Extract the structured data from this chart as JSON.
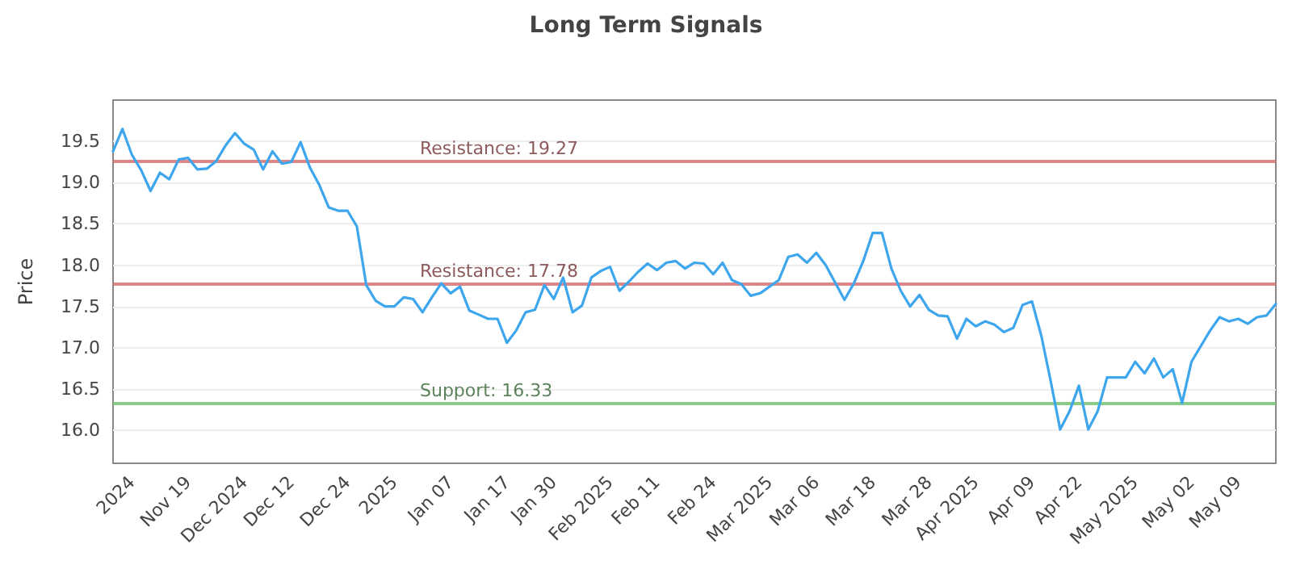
{
  "chart_data": {
    "type": "line",
    "title": "Long Term Signals",
    "ylabel": "Price",
    "categories": [
      null,
      null,
      "2024",
      null,
      null,
      null,
      null,
      null,
      "Nov 19",
      null,
      null,
      null,
      null,
      null,
      "Dec 2024",
      null,
      null,
      null,
      null,
      "Dec 12",
      null,
      null,
      null,
      null,
      null,
      "Dec 24",
      null,
      null,
      null,
      null,
      "2025",
      null,
      null,
      null,
      null,
      null,
      "Jan 07",
      null,
      null,
      null,
      null,
      null,
      "Jan 17",
      null,
      null,
      null,
      null,
      "Jan 30",
      null,
      null,
      null,
      null,
      null,
      "Feb 2025",
      null,
      null,
      null,
      null,
      "Feb 11",
      null,
      null,
      null,
      null,
      null,
      "Feb 24",
      null,
      null,
      null,
      null,
      null,
      "Mar 2025",
      null,
      null,
      null,
      null,
      "Mar 06",
      null,
      null,
      null,
      null,
      null,
      "Mar 18",
      null,
      null,
      null,
      null,
      null,
      "Mar 28",
      null,
      null,
      null,
      null,
      "Apr 2025",
      null,
      null,
      null,
      null,
      null,
      "Apr 09",
      null,
      null,
      null,
      null,
      "Apr 22",
      null,
      null,
      null,
      null,
      null,
      "May 2025",
      null,
      null,
      null,
      null,
      null,
      "May 02",
      null,
      null,
      null,
      null,
      "May 09",
      null,
      null,
      null,
      null
    ],
    "series": [
      {
        "color": "#3ea6ec",
        "values": [
          19.38,
          19.65,
          19.34,
          19.15,
          18.9,
          19.12,
          19.04,
          19.28,
          19.3,
          19.16,
          19.17,
          19.26,
          19.45,
          19.6,
          19.47,
          19.4,
          19.16,
          19.38,
          19.23,
          19.25,
          19.49,
          19.18,
          18.97,
          18.7,
          18.66,
          18.66,
          18.47,
          17.76,
          17.57,
          17.5,
          17.5,
          17.61,
          17.59,
          17.43,
          17.61,
          17.78,
          17.66,
          17.74,
          17.45,
          17.4,
          17.35,
          17.35,
          17.06,
          17.21,
          17.43,
          17.46,
          17.76,
          17.59,
          17.85,
          17.43,
          17.51,
          17.85,
          17.93,
          17.98,
          17.69,
          17.8,
          17.92,
          18.02,
          17.94,
          18.03,
          18.05,
          17.96,
          18.03,
          18.02,
          17.89,
          18.03,
          17.82,
          17.77,
          17.63,
          17.66,
          17.74,
          17.82,
          18.1,
          18.13,
          18.03,
          18.15,
          18.0,
          17.79,
          17.58,
          17.78,
          18.05,
          18.39,
          18.39,
          17.96,
          17.69,
          17.5,
          17.64,
          17.46,
          17.39,
          17.38,
          17.11,
          17.35,
          17.26,
          17.32,
          17.28,
          17.19,
          17.24,
          17.52,
          17.56,
          17.14,
          16.59,
          16.01,
          16.23,
          16.54,
          16.01,
          16.23,
          16.64,
          16.64,
          16.64,
          16.83,
          16.69,
          16.87,
          16.64,
          16.74,
          16.33,
          16.83,
          17.02,
          17.21,
          17.37,
          17.32,
          17.35,
          17.29,
          17.37,
          17.39,
          17.53
        ]
      }
    ],
    "ylim": [
      15.6,
      20.0
    ],
    "yticks": [
      {
        "value": 16,
        "label": "16.0"
      },
      {
        "value": 16.5,
        "label": "16.5"
      },
      {
        "value": 17,
        "label": "17.0"
      },
      {
        "value": 17.5,
        "label": "17.5"
      },
      {
        "value": 18,
        "label": "18.0"
      },
      {
        "value": 18.5,
        "label": "18.5"
      },
      {
        "value": 19,
        "label": "19.0"
      },
      {
        "value": 19.5,
        "label": "19.5"
      }
    ],
    "ref_lines": [
      {
        "axis": "y",
        "value": 19.27,
        "label": "Resistance: 19.27",
        "color": "#d9787a"
      },
      {
        "axis": "y",
        "value": 17.78,
        "label": "Resistance: 17.78",
        "color": "#d9787a"
      },
      {
        "axis": "y",
        "value": 16.33,
        "label": "Support: 16.33",
        "color": "#7cc47c"
      }
    ],
    "grid": "y",
    "marker": "none",
    "line_style": "solid"
  }
}
